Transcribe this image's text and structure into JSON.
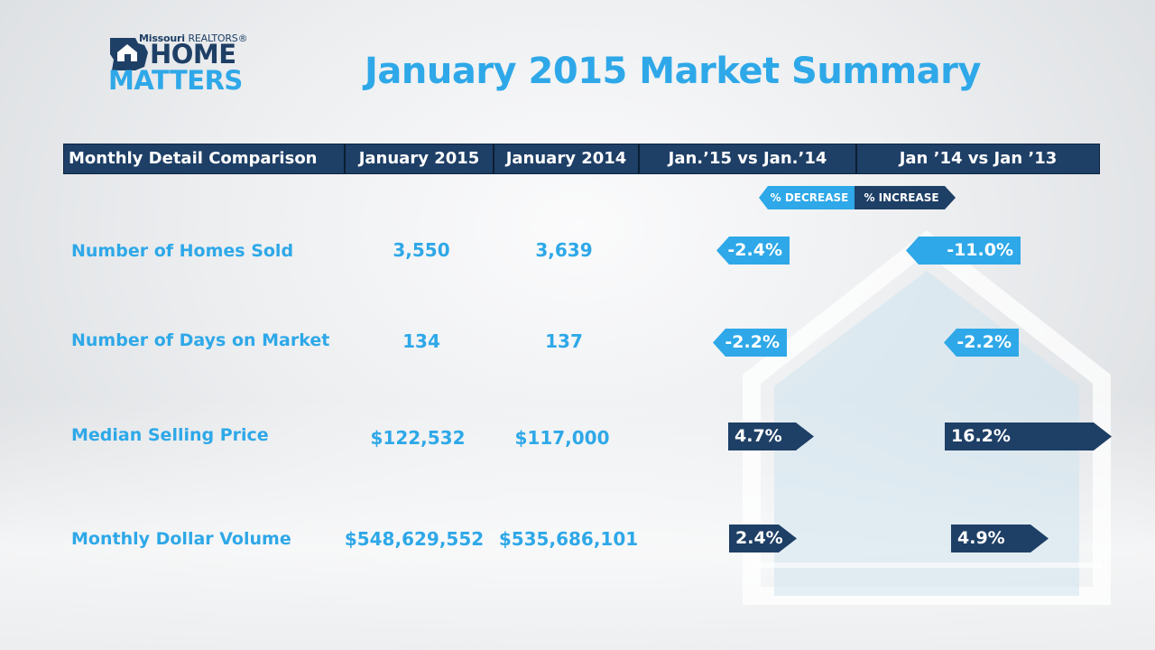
{
  "logo": {
    "brand_line": "Missouri",
    "brand_suffix": "REALTORS®",
    "word1": "HOME",
    "word2": "MATTERS",
    "icon": "missouri-house-icon"
  },
  "title": "January 2015 Market Summary",
  "colors": {
    "accent": "#2ea8e8",
    "dark": "#1e3f66",
    "white": "#ffffff"
  },
  "legend": {
    "decrease": "% DECREASE",
    "increase": "% INCREASE"
  },
  "chart_data": {
    "type": "table",
    "title": "January 2015 Market Summary",
    "columns": [
      "Monthly Detail Comparison",
      "January 2015",
      "January 2014",
      "Jan.’15 vs Jan.’14",
      "Jan ’14 vs Jan ’13"
    ],
    "rows": [
      {
        "label": "Number of Homes Sold",
        "jan2015": "3,550",
        "jan2014": "3,639",
        "chg_15_14": "-2.4%",
        "chg_14_13": "-11.0%",
        "dir_15_14": "down",
        "dir_14_13": "down"
      },
      {
        "label": "Number of Days on Market",
        "jan2015": "134",
        "jan2014": "137",
        "chg_15_14": "-2.2%",
        "chg_14_13": "-2.2%",
        "dir_15_14": "down",
        "dir_14_13": "down"
      },
      {
        "label": "Median Selling Price",
        "jan2015": "$122,532",
        "jan2014": "$117,000",
        "chg_15_14": "4.7%",
        "chg_14_13": "16.2%",
        "dir_15_14": "up",
        "dir_14_13": "up"
      },
      {
        "label": "Monthly Dollar Volume",
        "jan2015": "$548,629,552",
        "jan2014": "$535,686,101",
        "chg_15_14": "2.4%",
        "chg_14_13": "4.9%",
        "dir_15_14": "up",
        "dir_14_13": "up"
      }
    ]
  }
}
